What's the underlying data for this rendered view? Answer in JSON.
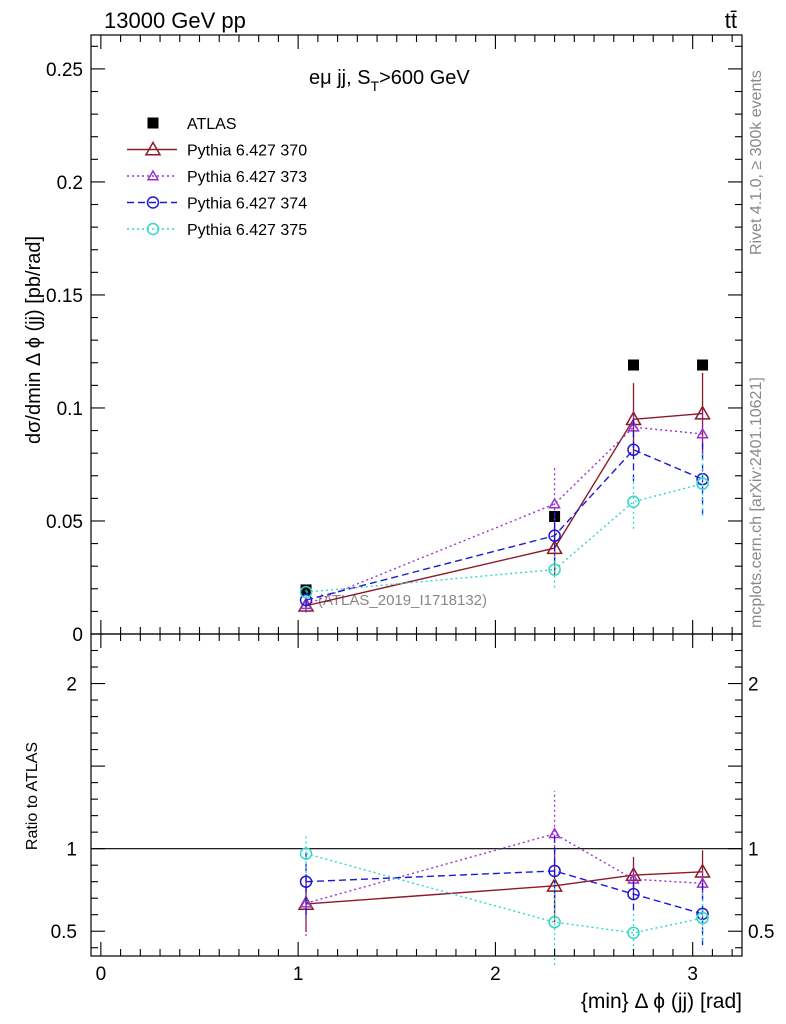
{
  "header": {
    "left": "13000 GeV pp",
    "right": "tt̄"
  },
  "side_labels": {
    "rivet": "Rivet 4.1.0, ≥ 300k events",
    "mcplots": "mcplots.cern.ch [arXiv:2401.10621]"
  },
  "chart_data": [
    {
      "type": "scatter",
      "panel": "main",
      "title": "eμ jj, S_T>600 GeV",
      "title_parts": {
        "base": "eμ jj, S",
        "sub": "T",
        "tail": ">600 GeV"
      },
      "xlabel": "{min} Δ ϕ (jj) [rad]",
      "ylabel": "dσ/dmin Δ ϕ (jj) [pb/rad]",
      "watermark": "(ATLAS_2019_I1718132)",
      "xlim": [
        -0.05,
        3.25
      ],
      "ylim": [
        0,
        0.265
      ],
      "yticks": [
        0,
        0.05,
        0.1,
        0.15,
        0.2,
        0.25
      ],
      "ytick_labels": [
        "0",
        "0.05",
        "0.1",
        "0.15",
        "0.2",
        "0.25"
      ],
      "x": [
        1.04,
        2.3,
        2.7,
        3.05
      ],
      "series": [
        {
          "name": "ATLAS",
          "marker": "square",
          "color": "#000000",
          "line": "none",
          "values": [
            0.0195,
            0.052,
            0.119,
            0.119
          ],
          "err": [
            0,
            0,
            0,
            0
          ]
        },
        {
          "name": "Pythia 6.427 370",
          "marker": "triangle",
          "color": "#8b1a2a",
          "line": "solid",
          "values": [
            0.0125,
            0.038,
            0.095,
            0.0975
          ],
          "err": [
            0.003,
            0.012,
            0.016,
            0.018
          ]
        },
        {
          "name": "Pythia 6.427 373",
          "marker": "triangle-small",
          "color": "#9932cc",
          "line": "dotted",
          "values": [
            0.013,
            0.0575,
            0.0915,
            0.0885
          ],
          "err": [
            0.003,
            0.016,
            0.009,
            0.01
          ]
        },
        {
          "name": "Pythia 6.427 374",
          "marker": "circle",
          "color": "#1a1ad6",
          "line": "dashed",
          "values": [
            0.015,
            0.0435,
            0.0815,
            0.0685
          ],
          "err": [
            0.003,
            0.012,
            0.014,
            0.016
          ]
        },
        {
          "name": "Pythia 6.427 375",
          "marker": "circle",
          "color": "#2fd8c8",
          "line": "dotted",
          "values": [
            0.0185,
            0.0285,
            0.0585,
            0.0665
          ],
          "err": [
            0.002,
            0.008,
            0.012,
            0.014
          ]
        }
      ]
    },
    {
      "type": "scatter",
      "panel": "ratio",
      "ylabel": "Ratio to ATLAS",
      "xlim": [
        -0.05,
        3.25
      ],
      "ylim": [
        0.35,
        2.3
      ],
      "yticks": [
        0.5,
        1,
        2
      ],
      "ytick_labels": [
        "0.5",
        "1",
        "2"
      ],
      "xticks": [
        0,
        1,
        2,
        3
      ],
      "xtick_labels": [
        "0",
        "1",
        "2",
        "3"
      ],
      "reference": 1,
      "x": [
        1.04,
        2.3,
        2.7,
        3.05
      ],
      "series": [
        {
          "name": "Pythia 6.427 370",
          "marker": "triangle",
          "color": "#8b1a2a",
          "line": "solid",
          "values": [
            0.665,
            0.775,
            0.84,
            0.86
          ],
          "err": [
            0.17,
            0.22,
            0.11,
            0.13
          ]
        },
        {
          "name": "Pythia 6.427 373",
          "marker": "triangle-small",
          "color": "#9932cc",
          "line": "dotted",
          "values": [
            0.67,
            1.09,
            0.815,
            0.79
          ],
          "err": [
            0.2,
            0.26,
            0.08,
            0.09
          ]
        },
        {
          "name": "Pythia 6.427 374",
          "marker": "circle",
          "color": "#1a1ad6",
          "line": "dashed",
          "values": [
            0.8,
            0.865,
            0.725,
            0.605
          ],
          "err": [
            0.2,
            0.23,
            0.1,
            0.19
          ]
        },
        {
          "name": "Pythia 6.427 375",
          "marker": "circle",
          "color": "#2fd8c8",
          "line": "dotted",
          "values": [
            0.97,
            0.555,
            0.49,
            0.58
          ],
          "err": [
            0.12,
            0.26,
            0.14,
            0.14
          ]
        }
      ]
    }
  ]
}
